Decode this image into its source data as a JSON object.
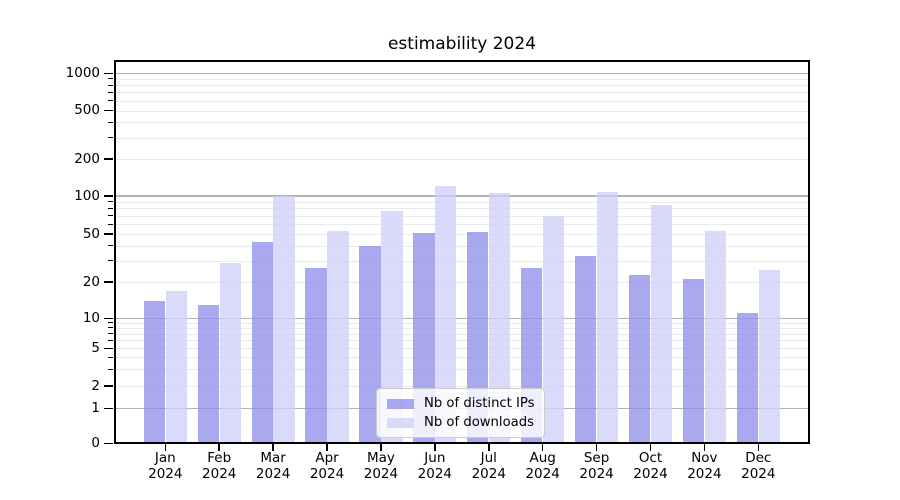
{
  "chart_data": {
    "type": "bar",
    "title": "estimability 2024",
    "categories": [
      "Jan 2024",
      "Feb 2024",
      "Mar 2024",
      "Apr 2024",
      "May 2024",
      "Jun 2024",
      "Jul 2024",
      "Aug 2024",
      "Sep 2024",
      "Oct 2024",
      "Nov 2024",
      "Dec 2024"
    ],
    "series": [
      {
        "name": "Nb of distinct IPs",
        "color": "#8c8ceb",
        "alpha": 0.75,
        "values": [
          14,
          13,
          43,
          26,
          40,
          51,
          52,
          26,
          33,
          23,
          21,
          11
        ]
      },
      {
        "name": "Nb of downloads",
        "color": "#d0d0f8",
        "alpha": 0.78,
        "values": [
          17,
          29,
          100,
          53,
          76,
          120,
          106,
          70,
          108,
          85,
          53,
          25
        ]
      }
    ],
    "yscale": "symlog",
    "ylim": [
      0,
      1300
    ],
    "y_tick_labels": [
      "0",
      "1",
      "2",
      "5",
      "10",
      "20",
      "50",
      "100",
      "200",
      "500",
      "1000"
    ],
    "grid": true,
    "legend_position": "lower center",
    "axis_color": "#000000",
    "major_grid_color": "#b2b2b2",
    "minor_grid_color": "#e9e9ef"
  }
}
